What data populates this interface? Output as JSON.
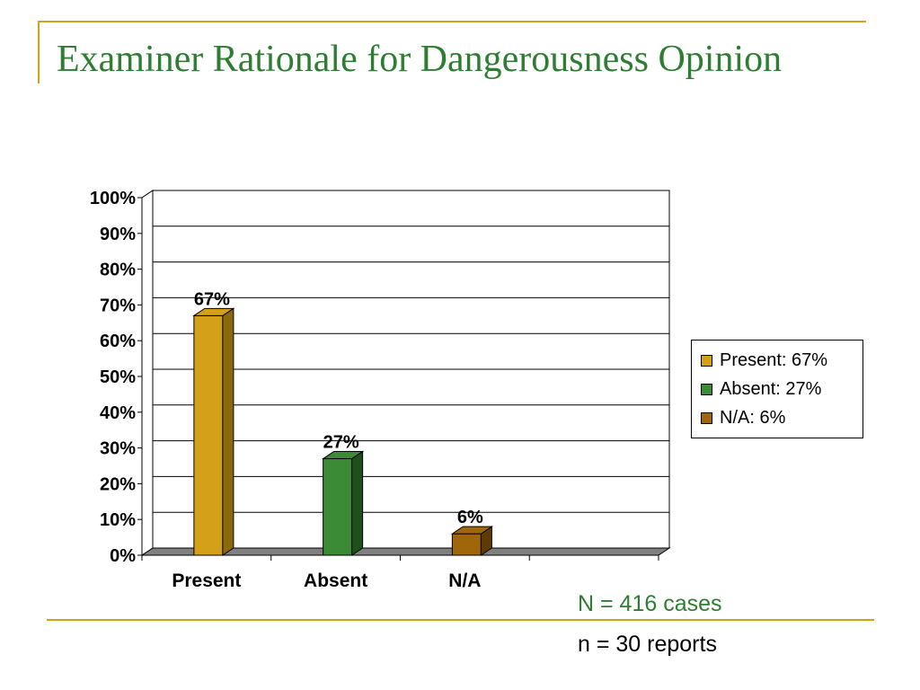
{
  "slide": {
    "title": "Examiner Rationale for Dangerousness Opinion",
    "note_cases": "N = 416 cases",
    "note_reports": "n = 30 reports"
  },
  "chart_data": {
    "type": "bar",
    "title": "",
    "xlabel": "",
    "ylabel": "",
    "categories": [
      "Present",
      "Absent",
      "N/A"
    ],
    "values": [
      67,
      27,
      6
    ],
    "data_labels": [
      "67%",
      "27%",
      "6%"
    ],
    "colors": [
      "#d4a017",
      "#3b8a35",
      "#a0660a"
    ],
    "side_colors": [
      "#8a6a0b",
      "#1f4f1c",
      "#5e3b06"
    ],
    "y_ticks": [
      "0%",
      "10%",
      "20%",
      "30%",
      "40%",
      "50%",
      "60%",
      "70%",
      "80%",
      "90%",
      "100%"
    ],
    "ylim": [
      0,
      100
    ],
    "grid": true,
    "legend_position": "right",
    "legend": [
      "Present: 67%",
      "Absent: 27%",
      "N/A: 6%"
    ]
  }
}
